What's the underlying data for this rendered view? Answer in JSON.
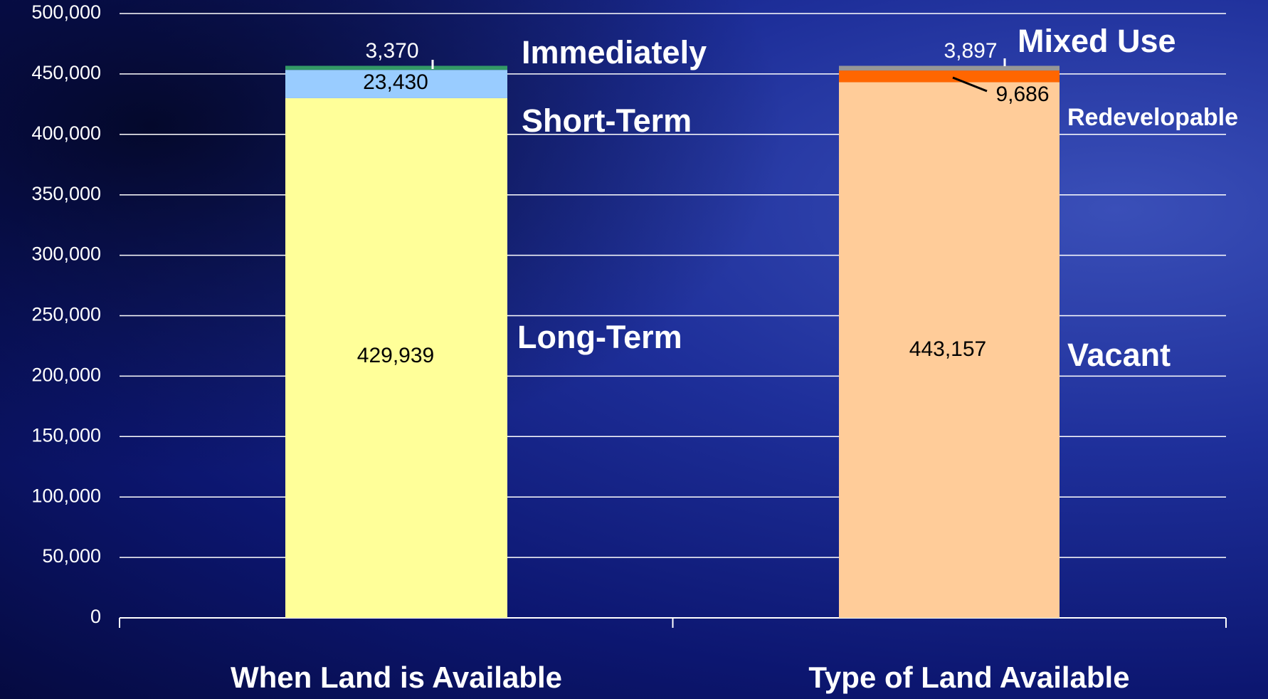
{
  "chart_data": {
    "type": "stacked_bar",
    "categories": [
      "When Land is Available",
      "Type of  Land Available"
    ],
    "series": [
      {
        "name": "Long-Term",
        "color": "#ffff99",
        "values": [
          429939,
          null
        ],
        "value_labels": [
          "429,939",
          null
        ]
      },
      {
        "name": "Short-Term",
        "color": "#99ccff",
        "values": [
          23430,
          null
        ],
        "value_labels": [
          "23,430",
          null
        ]
      },
      {
        "name": "Immediately",
        "color": "#339966",
        "values": [
          3370,
          null
        ],
        "value_labels": [
          "3,370",
          null
        ]
      },
      {
        "name": "Vacant",
        "color": "#ffcc99",
        "values": [
          null,
          443157
        ],
        "value_labels": [
          null,
          "443,157"
        ]
      },
      {
        "name": "Redevelopable",
        "color": "#ff6600",
        "values": [
          null,
          9686
        ],
        "value_labels": [
          null,
          "9,686"
        ]
      },
      {
        "name": "Mixed Use",
        "color": "#969696",
        "values": [
          null,
          3897
        ],
        "value_labels": [
          null,
          "3,897"
        ]
      }
    ],
    "ylim": [
      0,
      500000
    ],
    "yticks": [
      0,
      {
        "value": 50000,
        "label": "50,000"
      },
      {
        "value": 100000,
        "label": "100,000"
      },
      {
        "value": 150000,
        "label": "150,000"
      },
      {
        "value": 200000,
        "label": "200,000"
      },
      {
        "value": 250000,
        "label": "250,000"
      },
      {
        "value": 300000,
        "label": "300,000"
      },
      {
        "value": 350000,
        "label": "350,000"
      },
      {
        "value": 400000,
        "label": "400,000"
      },
      {
        "value": 450000,
        "label": "450,000"
      },
      {
        "value": 500000,
        "label": "500,000"
      }
    ],
    "grid": true
  }
}
